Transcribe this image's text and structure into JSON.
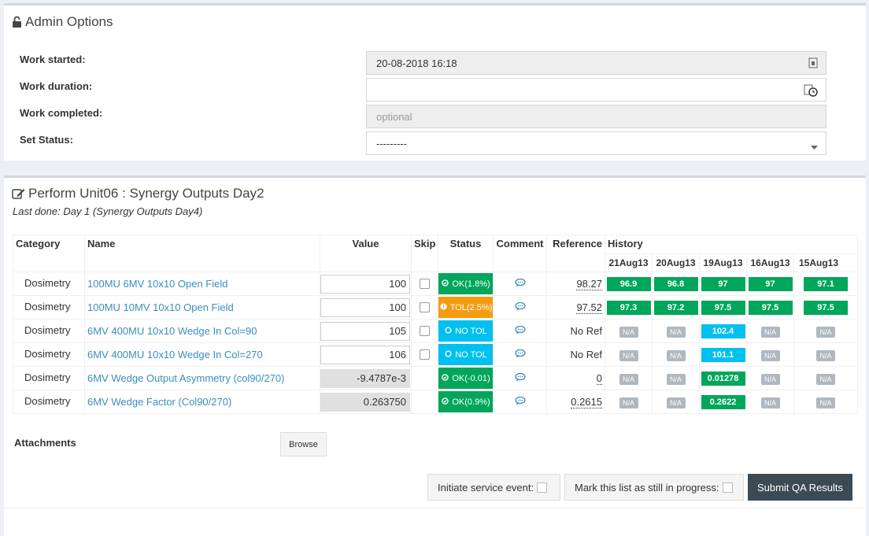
{
  "admin": {
    "title": "Admin Options",
    "work_started_label": "Work started:",
    "work_started_value": "20-08-2018 16:18",
    "work_duration_label": "Work duration:",
    "work_duration_value": "",
    "work_completed_label": "Work completed:",
    "work_completed_placeholder": "optional",
    "set_status_label": "Set Status:",
    "set_status_value": "---------"
  },
  "perform": {
    "title": "Perform Unit06 : Synergy Outputs Day2",
    "last_done": "Last done: Day 1 (Synergy Outputs Day4)",
    "headers": {
      "category": "Category",
      "name": "Name",
      "value": "Value",
      "skip": "Skip",
      "status": "Status",
      "comment": "Comment",
      "reference": "Reference",
      "history": "History"
    },
    "history_dates": [
      "21Aug13",
      "20Aug13",
      "19Aug13",
      "16Aug13",
      "15Aug13"
    ],
    "rows": [
      {
        "category": "Dosimetry",
        "name": "100MU 6MV 10x10 Open Field",
        "value": "100",
        "readonly": false,
        "status": "OK(1.8%)",
        "status_type": "ok",
        "reference": "98.27",
        "ref_dotted": true,
        "history": [
          {
            "v": "96.9",
            "t": "ok"
          },
          {
            "v": "96.8",
            "t": "ok"
          },
          {
            "v": "97",
            "t": "ok"
          },
          {
            "v": "97",
            "t": "ok"
          },
          {
            "v": "97.1",
            "t": "ok"
          }
        ]
      },
      {
        "category": "Dosimetry",
        "name": "100MU 10MV 10x10 Open Field",
        "value": "100",
        "readonly": false,
        "status": "TOL(2.5%)",
        "status_type": "tol",
        "reference": "97.52",
        "ref_dotted": true,
        "history": [
          {
            "v": "97.3",
            "t": "ok"
          },
          {
            "v": "97.2",
            "t": "ok"
          },
          {
            "v": "97.5",
            "t": "ok"
          },
          {
            "v": "97.5",
            "t": "ok"
          },
          {
            "v": "97.5",
            "t": "ok"
          }
        ]
      },
      {
        "category": "Dosimetry",
        "name": "6MV 400MU 10x10 Wedge In Col=90",
        "value": "105",
        "readonly": false,
        "status": "NO TOL",
        "status_type": "notol",
        "reference": "No Ref",
        "ref_dotted": false,
        "history": [
          {
            "v": "N/A",
            "t": "na"
          },
          {
            "v": "N/A",
            "t": "na"
          },
          {
            "v": "102.4",
            "t": "notol"
          },
          {
            "v": "N/A",
            "t": "na"
          },
          {
            "v": "N/A",
            "t": "na"
          }
        ]
      },
      {
        "category": "Dosimetry",
        "name": "6MV 400MU 10x10 Wedge In Col=270",
        "value": "106",
        "readonly": false,
        "status": "NO TOL",
        "status_type": "notol",
        "reference": "No Ref",
        "ref_dotted": false,
        "history": [
          {
            "v": "N/A",
            "t": "na"
          },
          {
            "v": "N/A",
            "t": "na"
          },
          {
            "v": "101.1",
            "t": "notol"
          },
          {
            "v": "N/A",
            "t": "na"
          },
          {
            "v": "N/A",
            "t": "na"
          }
        ]
      },
      {
        "category": "Dosimetry",
        "name": "6MV Wedge Output Asymmetry (col90/270)",
        "value": "-9.4787e-3",
        "readonly": true,
        "status": "OK(-0.01)",
        "status_type": "ok",
        "reference": "0",
        "ref_dotted": true,
        "history": [
          {
            "v": "N/A",
            "t": "na"
          },
          {
            "v": "N/A",
            "t": "na"
          },
          {
            "v": "0.01278",
            "t": "ok"
          },
          {
            "v": "N/A",
            "t": "na"
          },
          {
            "v": "N/A",
            "t": "na"
          }
        ]
      },
      {
        "category": "Dosimetry",
        "name": "6MV Wedge Factor (Col90/270)",
        "value": "0.263750",
        "readonly": true,
        "status": "OK(0.9%)",
        "status_type": "ok",
        "reference": "0.2615",
        "ref_dotted": true,
        "history": [
          {
            "v": "N/A",
            "t": "na"
          },
          {
            "v": "N/A",
            "t": "na"
          },
          {
            "v": "0.2622",
            "t": "ok"
          },
          {
            "v": "N/A",
            "t": "na"
          },
          {
            "v": "N/A",
            "t": "na"
          }
        ]
      }
    ],
    "attachments_label": "Attachments",
    "browse_label": "Browse",
    "initiate_service_label": "Initiate service event:",
    "in_progress_label": "Mark this list as still in progress:",
    "submit_label": "Submit QA Results"
  },
  "colors": {
    "ok": "#00a65a",
    "tol": "#f39c12",
    "notol": "#00c0ef",
    "link": "#3c8dbc",
    "submit": "#3c4a54"
  }
}
